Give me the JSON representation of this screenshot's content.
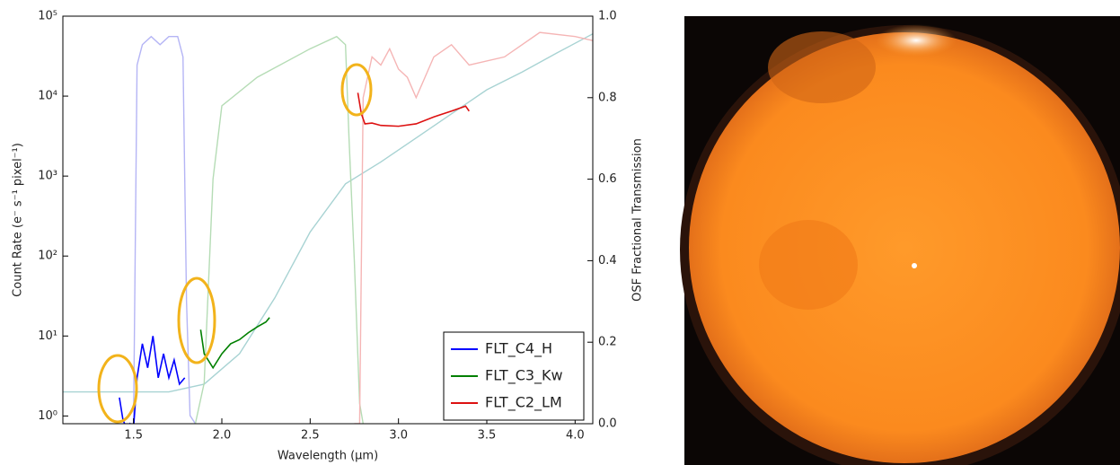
{
  "chart_data": {
    "type": "line",
    "xlabel": "Wavelength (μm)",
    "ylabel": "Count Rate (e⁻ s⁻¹ pixel⁻¹)",
    "y2label": "OSF Fractional Transmission",
    "xlim": [
      1.1,
      4.1
    ],
    "xticks": [
      1.5,
      {
        "value": 2,
        "label": "2.0"
      },
      2.5,
      {
        "value": 3,
        "label": "3.0"
      },
      3.5,
      {
        "value": 4,
        "label": "4.0"
      }
    ],
    "ylim": [
      0.8,
      100000
    ],
    "log_y": true,
    "yticks": [
      {
        "value": 1,
        "label": "10⁰"
      },
      {
        "value": 10,
        "label": "10¹"
      },
      {
        "value": 100,
        "label": "10²"
      },
      {
        "value": 1000,
        "label": "10³"
      },
      {
        "value": 10000,
        "label": "10⁴"
      },
      {
        "value": 100000,
        "label": "10⁵"
      }
    ],
    "y2lim": [
      0,
      1
    ],
    "y2ticks": [
      {
        "value": 0,
        "label": "0.0"
      },
      0.2,
      0.4,
      0.6,
      0.8,
      {
        "value": 1,
        "label": "1.0"
      }
    ],
    "legend": "lower right",
    "series": [
      {
        "name": "FLT_C4_H",
        "color": "#0000ff",
        "x": [
          1.42,
          1.44,
          1.46,
          1.48,
          1.5,
          1.52,
          1.55,
          1.58,
          1.61,
          1.64,
          1.67,
          1.7,
          1.73,
          1.76,
          1.79
        ],
        "values": [
          1.7,
          0.9,
          0.7,
          0.8,
          0.7,
          3,
          8,
          4,
          10,
          3,
          6,
          3,
          5,
          2.5,
          3
        ]
      },
      {
        "name": "FLT_C3_Kw",
        "color": "#008000",
        "x": [
          1.88,
          1.9,
          1.95,
          2.0,
          2.05,
          2.1,
          2.15,
          2.2,
          2.25,
          2.27
        ],
        "values": [
          12,
          6,
          4,
          6,
          8,
          9,
          11,
          13,
          15,
          17
        ]
      },
      {
        "name": "FLT_C2_LM",
        "color": "#dd1111",
        "x": [
          2.77,
          2.79,
          2.81,
          2.85,
          2.9,
          3.0,
          3.1,
          3.2,
          3.3,
          3.38,
          3.4
        ],
        "values": [
          11000,
          6000,
          4500,
          4600,
          4300,
          4200,
          4500,
          5500,
          6500,
          7500,
          6500
        ]
      },
      {
        "color": "#a8d3d3",
        "x": [
          1.1,
          1.3,
          1.5,
          1.7,
          1.9,
          2.1,
          2.3,
          2.5,
          2.7,
          2.9,
          3.1,
          3.3,
          3.5,
          3.7,
          3.9,
          4.1
        ],
        "values": [
          2,
          2,
          2,
          2,
          2.5,
          6,
          30,
          200,
          800,
          1500,
          3000,
          6000,
          12000,
          20000,
          35000,
          60000
        ]
      },
      {
        "color": "#b5b5f5",
        "axis": "y2",
        "x": [
          1.45,
          1.5,
          1.52,
          1.55,
          1.6,
          1.65,
          1.7,
          1.75,
          1.78,
          1.8,
          1.82,
          1.85
        ],
        "values": [
          0,
          0,
          0.88,
          0.93,
          0.95,
          0.93,
          0.95,
          0.95,
          0.9,
          0.3,
          0.02,
          0
        ]
      },
      {
        "color": "#b5dcb5",
        "axis": "y2",
        "x": [
          1.85,
          1.9,
          1.95,
          2.0,
          2.2,
          2.5,
          2.65,
          2.7,
          2.72,
          2.75,
          2.78,
          2.8
        ],
        "values": [
          0,
          0.1,
          0.6,
          0.78,
          0.85,
          0.92,
          0.95,
          0.93,
          0.7,
          0.4,
          0.05,
          0
        ]
      },
      {
        "color": "#f5b5b5",
        "axis": "y2",
        "x": [
          2.75,
          2.78,
          2.8,
          2.85,
          2.9,
          2.95,
          3.0,
          3.05,
          3.1,
          3.15,
          3.2,
          3.3,
          3.4,
          3.6,
          3.8,
          4.0,
          4.1
        ],
        "values": [
          0,
          0,
          0.8,
          0.9,
          0.88,
          0.92,
          0.87,
          0.85,
          0.8,
          0.85,
          0.9,
          0.93,
          0.88,
          0.9,
          0.96,
          0.95,
          0.94
        ]
      }
    ]
  }
}
